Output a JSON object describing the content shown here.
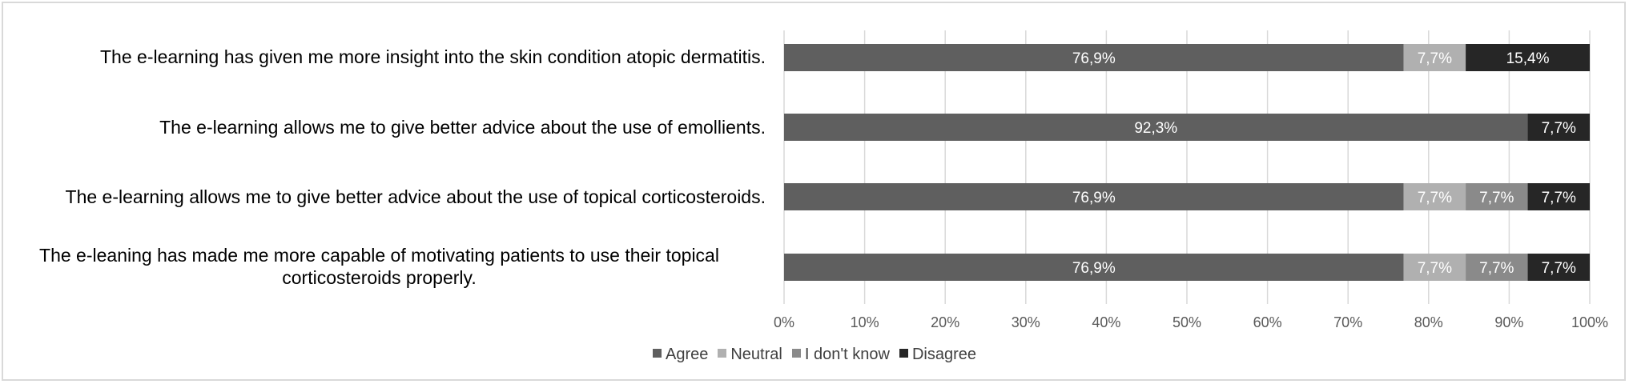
{
  "chart_data": {
    "type": "bar",
    "orientation": "horizontal",
    "stacked": true,
    "percent": true,
    "categories": [
      "The e-learning has given me more insight into the skin condition atopic dermatitis.",
      "The e-learning allows me to give better advice about the use of emollients.",
      "The e-learning allows me to give better advice about the use of topical corticosteroids.",
      "The e-leaning has made me more capable of motivating patients to use their topical corticosteroids properly."
    ],
    "series": [
      {
        "name": "Agree",
        "values": [
          76.9,
          92.3,
          76.9,
          76.9
        ],
        "labels": [
          "76,9%",
          "92,3%",
          "76,9%",
          "76,9%"
        ]
      },
      {
        "name": "Neutral",
        "values": [
          7.7,
          0,
          7.7,
          7.7
        ],
        "labels": [
          "7,7%",
          "",
          "7,7%",
          "7,7%"
        ]
      },
      {
        "name": "I don't know",
        "values": [
          0,
          0,
          7.7,
          7.7
        ],
        "labels": [
          "",
          "",
          "7,7%",
          "7,7%"
        ]
      },
      {
        "name": "Disagree",
        "values": [
          15.4,
          7.7,
          7.7,
          7.7
        ],
        "labels": [
          "15,4%",
          "7,7%",
          "7,7%",
          "7,7%"
        ]
      }
    ],
    "colors": [
      "#5f5f5f",
      "#b0b0b0",
      "#8a8a8a",
      "#262626"
    ],
    "xlim": [
      0,
      100
    ],
    "xticks": [
      "0%",
      "10%",
      "20%",
      "30%",
      "40%",
      "50%",
      "60%",
      "70%",
      "80%",
      "90%",
      "100%"
    ],
    "grid": true,
    "legend_position": "bottom"
  }
}
